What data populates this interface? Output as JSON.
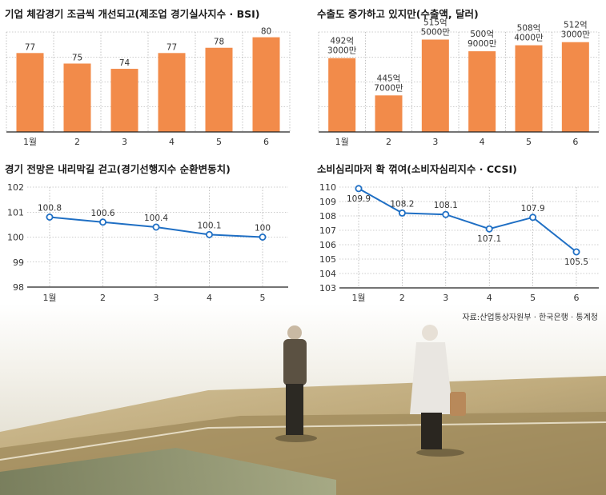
{
  "colors": {
    "bar": "#f28b4a",
    "line": "#1f6fc4",
    "grid": "#9a9a9a",
    "axis": "#222222",
    "background": "#ffffff"
  },
  "source": "자료:산업통상자원부 · 한국은행 · 통계청",
  "chart_data": [
    {
      "type": "bar",
      "title": "기업 체감경기 조금씩 개선되고(제조업 경기실사지수 · BSI)",
      "categories": [
        "1월",
        "2",
        "3",
        "4",
        "5",
        "6"
      ],
      "values": [
        77,
        75,
        74,
        77,
        78,
        80
      ],
      "value_labels": [
        "77",
        "75",
        "74",
        "77",
        "78",
        "80"
      ],
      "ylim": [
        62,
        81
      ],
      "grid": true
    },
    {
      "type": "bar",
      "title": "수출도 증가하고 있지만(수출액, 달러)",
      "categories": [
        "1월",
        "2",
        "3",
        "4",
        "5",
        "6"
      ],
      "values": [
        49230000000,
        44570000000,
        51550000000,
        50090000000,
        50840000000,
        51230000000
      ],
      "value_labels": [
        [
          "492억",
          "3000만"
        ],
        [
          "445억",
          "7000만"
        ],
        [
          "515억",
          "5000만"
        ],
        [
          "500억",
          "9000만"
        ],
        [
          "508억",
          "4000만"
        ],
        [
          "512억",
          "3000만"
        ]
      ],
      "ylim": [
        40000000000,
        52500000000
      ],
      "grid": true
    },
    {
      "type": "line",
      "title": "경기 전망은 내리막길 걷고(경기선행지수 순환변동치)",
      "categories": [
        "1월",
        "2",
        "3",
        "4",
        "5"
      ],
      "values": [
        100.8,
        100.6,
        100.4,
        100.1,
        100
      ],
      "value_labels": [
        "100.8",
        "100.6",
        "100.4",
        "100.1",
        "100"
      ],
      "yticks": [
        "102",
        "101",
        "100",
        "99",
        "98"
      ],
      "ylim": [
        98,
        102
      ],
      "grid": true
    },
    {
      "type": "line",
      "title": "소비심리마저 확 꺾여(소비자심리지수 · CCSI)",
      "categories": [
        "1월",
        "2",
        "3",
        "4",
        "5",
        "6"
      ],
      "values": [
        109.9,
        108.2,
        108.1,
        107.1,
        107.9,
        105.5
      ],
      "value_labels": [
        "109.9",
        "108.2",
        "108.1",
        "107.1",
        "107.9",
        "105.5"
      ],
      "yticks": [
        "110",
        "109",
        "108",
        "107",
        "106",
        "105",
        "104",
        "103"
      ],
      "ylim": [
        103,
        110
      ],
      "grid": true
    }
  ]
}
